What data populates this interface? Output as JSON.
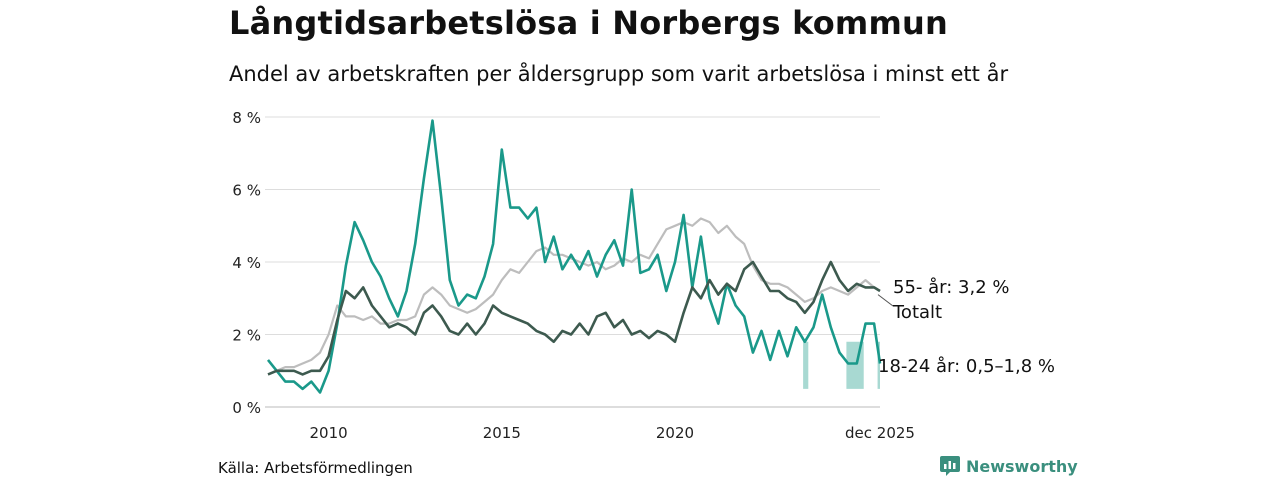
{
  "header": {
    "title": "Långtidsarbetslösa i Norbergs kommun",
    "subtitle": "Andel av arbetskraften per åldersgrupp som varit arbetslösa i minst ett år"
  },
  "footer": {
    "source": "Källa: Arbetsförmedlingen",
    "brand": "Newsworthy"
  },
  "colors": {
    "series_55": "#3d5a4f",
    "series_18_24": "#1a998a",
    "series_total": "#bdbdbd",
    "uncertainty_band": "#a8d9d2",
    "grid": "#dddddd"
  },
  "chart_data": {
    "type": "line",
    "title": "Långtidsarbetslösa i Norbergs kommun",
    "subtitle": "Andel av arbetskraften per åldersgrupp som varit arbetslösa i minst ett år",
    "xlabel": "",
    "ylabel": "",
    "ylim": [
      0,
      8
    ],
    "xlim": [
      2008.25,
      2025.92
    ],
    "y_ticks": [
      0,
      2,
      4,
      6,
      8
    ],
    "y_tick_labels": [
      "0 %",
      "2 %",
      "4 %",
      "6 %",
      "8 %"
    ],
    "x_ticks": [
      2010,
      2015,
      2020,
      2025.92
    ],
    "x_tick_labels": [
      "2010",
      "2015",
      "2020",
      "dec 2025"
    ],
    "grid": true,
    "series": [
      {
        "name": "Totalt",
        "label": "Totalt",
        "color": "#bdbdbd",
        "points": [
          [
            2008.25,
            0.9
          ],
          [
            2008.5,
            1.0
          ],
          [
            2008.75,
            1.1
          ],
          [
            2009.0,
            1.1
          ],
          [
            2009.25,
            1.2
          ],
          [
            2009.5,
            1.3
          ],
          [
            2009.75,
            1.5
          ],
          [
            2010.0,
            2.0
          ],
          [
            2010.25,
            2.8
          ],
          [
            2010.5,
            2.5
          ],
          [
            2010.75,
            2.5
          ],
          [
            2011.0,
            2.4
          ],
          [
            2011.25,
            2.5
          ],
          [
            2011.5,
            2.3
          ],
          [
            2011.75,
            2.3
          ],
          [
            2012.0,
            2.4
          ],
          [
            2012.25,
            2.4
          ],
          [
            2012.5,
            2.5
          ],
          [
            2012.75,
            3.1
          ],
          [
            2013.0,
            3.3
          ],
          [
            2013.25,
            3.1
          ],
          [
            2013.5,
            2.8
          ],
          [
            2013.75,
            2.7
          ],
          [
            2014.0,
            2.6
          ],
          [
            2014.25,
            2.7
          ],
          [
            2014.5,
            2.9
          ],
          [
            2014.75,
            3.1
          ],
          [
            2015.0,
            3.5
          ],
          [
            2015.25,
            3.8
          ],
          [
            2015.5,
            3.7
          ],
          [
            2015.75,
            4.0
          ],
          [
            2016.0,
            4.3
          ],
          [
            2016.25,
            4.4
          ],
          [
            2016.5,
            4.2
          ],
          [
            2016.75,
            4.2
          ],
          [
            2017.0,
            4.1
          ],
          [
            2017.25,
            4.0
          ],
          [
            2017.5,
            3.9
          ],
          [
            2017.75,
            4.0
          ],
          [
            2018.0,
            3.8
          ],
          [
            2018.25,
            3.9
          ],
          [
            2018.5,
            4.1
          ],
          [
            2018.75,
            4.0
          ],
          [
            2019.0,
            4.2
          ],
          [
            2019.25,
            4.1
          ],
          [
            2019.5,
            4.5
          ],
          [
            2019.75,
            4.9
          ],
          [
            2020.0,
            5.0
          ],
          [
            2020.25,
            5.1
          ],
          [
            2020.5,
            5.0
          ],
          [
            2020.75,
            5.2
          ],
          [
            2021.0,
            5.1
          ],
          [
            2021.25,
            4.8
          ],
          [
            2021.5,
            5.0
          ],
          [
            2021.75,
            4.7
          ],
          [
            2022.0,
            4.5
          ],
          [
            2022.25,
            3.9
          ],
          [
            2022.5,
            3.5
          ],
          [
            2022.75,
            3.4
          ],
          [
            2023.0,
            3.4
          ],
          [
            2023.25,
            3.3
          ],
          [
            2023.5,
            3.1
          ],
          [
            2023.75,
            2.9
          ],
          [
            2024.0,
            3.0
          ],
          [
            2024.25,
            3.2
          ],
          [
            2024.5,
            3.3
          ],
          [
            2024.75,
            3.2
          ],
          [
            2025.0,
            3.1
          ],
          [
            2025.25,
            3.3
          ],
          [
            2025.5,
            3.5
          ],
          [
            2025.75,
            3.3
          ],
          [
            2025.92,
            3.2
          ]
        ]
      },
      {
        "name": "55- år",
        "label": "55- år: 3,2 %",
        "color": "#3d5a4f",
        "points": [
          [
            2008.25,
            0.9
          ],
          [
            2008.5,
            1.0
          ],
          [
            2008.75,
            1.0
          ],
          [
            2009.0,
            1.0
          ],
          [
            2009.25,
            0.9
          ],
          [
            2009.5,
            1.0
          ],
          [
            2009.75,
            1.0
          ],
          [
            2010.0,
            1.4
          ],
          [
            2010.25,
            2.4
          ],
          [
            2010.5,
            3.2
          ],
          [
            2010.75,
            3.0
          ],
          [
            2011.0,
            3.3
          ],
          [
            2011.25,
            2.8
          ],
          [
            2011.5,
            2.5
          ],
          [
            2011.75,
            2.2
          ],
          [
            2012.0,
            2.3
          ],
          [
            2012.25,
            2.2
          ],
          [
            2012.5,
            2.0
          ],
          [
            2012.75,
            2.6
          ],
          [
            2013.0,
            2.8
          ],
          [
            2013.25,
            2.5
          ],
          [
            2013.5,
            2.1
          ],
          [
            2013.75,
            2.0
          ],
          [
            2014.0,
            2.3
          ],
          [
            2014.25,
            2.0
          ],
          [
            2014.5,
            2.3
          ],
          [
            2014.75,
            2.8
          ],
          [
            2015.0,
            2.6
          ],
          [
            2015.25,
            2.5
          ],
          [
            2015.5,
            2.4
          ],
          [
            2015.75,
            2.3
          ],
          [
            2016.0,
            2.1
          ],
          [
            2016.25,
            2.0
          ],
          [
            2016.5,
            1.8
          ],
          [
            2016.75,
            2.1
          ],
          [
            2017.0,
            2.0
          ],
          [
            2017.25,
            2.3
          ],
          [
            2017.5,
            2.0
          ],
          [
            2017.75,
            2.5
          ],
          [
            2018.0,
            2.6
          ],
          [
            2018.25,
            2.2
          ],
          [
            2018.5,
            2.4
          ],
          [
            2018.75,
            2.0
          ],
          [
            2019.0,
            2.1
          ],
          [
            2019.25,
            1.9
          ],
          [
            2019.5,
            2.1
          ],
          [
            2019.75,
            2.0
          ],
          [
            2020.0,
            1.8
          ],
          [
            2020.25,
            2.6
          ],
          [
            2020.5,
            3.3
          ],
          [
            2020.75,
            3.0
          ],
          [
            2021.0,
            3.5
          ],
          [
            2021.25,
            3.1
          ],
          [
            2021.5,
            3.4
          ],
          [
            2021.75,
            3.2
          ],
          [
            2022.0,
            3.8
          ],
          [
            2022.25,
            4.0
          ],
          [
            2022.5,
            3.6
          ],
          [
            2022.75,
            3.2
          ],
          [
            2023.0,
            3.2
          ],
          [
            2023.25,
            3.0
          ],
          [
            2023.5,
            2.9
          ],
          [
            2023.75,
            2.6
          ],
          [
            2024.0,
            2.9
          ],
          [
            2024.25,
            3.5
          ],
          [
            2024.5,
            4.0
          ],
          [
            2024.75,
            3.5
          ],
          [
            2025.0,
            3.2
          ],
          [
            2025.25,
            3.4
          ],
          [
            2025.5,
            3.3
          ],
          [
            2025.75,
            3.3
          ],
          [
            2025.92,
            3.2
          ]
        ]
      },
      {
        "name": "18-24 år",
        "label": "18-24 år: 0,5–1,8 %",
        "color": "#1a998a",
        "band_last": [
          0.5,
          1.8
        ],
        "points": [
          [
            2008.25,
            1.3
          ],
          [
            2008.5,
            1.0
          ],
          [
            2008.75,
            0.7
          ],
          [
            2009.0,
            0.7
          ],
          [
            2009.25,
            0.5
          ],
          [
            2009.5,
            0.7
          ],
          [
            2009.75,
            0.4
          ],
          [
            2010.0,
            1.0
          ],
          [
            2010.25,
            2.3
          ],
          [
            2010.5,
            3.9
          ],
          [
            2010.75,
            5.1
          ],
          [
            2011.0,
            4.6
          ],
          [
            2011.25,
            4.0
          ],
          [
            2011.5,
            3.6
          ],
          [
            2011.75,
            3.0
          ],
          [
            2012.0,
            2.5
          ],
          [
            2012.25,
            3.2
          ],
          [
            2012.5,
            4.5
          ],
          [
            2012.75,
            6.3
          ],
          [
            2013.0,
            7.9
          ],
          [
            2013.25,
            5.8
          ],
          [
            2013.5,
            3.5
          ],
          [
            2013.75,
            2.8
          ],
          [
            2014.0,
            3.1
          ],
          [
            2014.25,
            3.0
          ],
          [
            2014.5,
            3.6
          ],
          [
            2014.75,
            4.5
          ],
          [
            2015.0,
            7.1
          ],
          [
            2015.25,
            5.5
          ],
          [
            2015.5,
            5.5
          ],
          [
            2015.75,
            5.2
          ],
          [
            2016.0,
            5.5
          ],
          [
            2016.25,
            4.0
          ],
          [
            2016.5,
            4.7
          ],
          [
            2016.75,
            3.8
          ],
          [
            2017.0,
            4.2
          ],
          [
            2017.25,
            3.8
          ],
          [
            2017.5,
            4.3
          ],
          [
            2017.75,
            3.6
          ],
          [
            2018.0,
            4.2
          ],
          [
            2018.25,
            4.6
          ],
          [
            2018.5,
            3.9
          ],
          [
            2018.75,
            6.0
          ],
          [
            2019.0,
            3.7
          ],
          [
            2019.25,
            3.8
          ],
          [
            2019.5,
            4.2
          ],
          [
            2019.75,
            3.2
          ],
          [
            2020.0,
            4.0
          ],
          [
            2020.25,
            5.3
          ],
          [
            2020.5,
            3.3
          ],
          [
            2020.75,
            4.7
          ],
          [
            2021.0,
            3.0
          ],
          [
            2021.25,
            2.3
          ],
          [
            2021.5,
            3.4
          ],
          [
            2021.75,
            2.8
          ],
          [
            2022.0,
            2.5
          ],
          [
            2022.25,
            1.5
          ],
          [
            2022.5,
            2.1
          ],
          [
            2022.75,
            1.3
          ],
          [
            2023.0,
            2.1
          ],
          [
            2023.25,
            1.4
          ],
          [
            2023.5,
            2.2
          ],
          [
            2023.75,
            1.8
          ],
          [
            2024.0,
            2.2
          ],
          [
            2024.25,
            3.1
          ],
          [
            2024.5,
            2.2
          ],
          [
            2024.75,
            1.5
          ],
          [
            2025.0,
            1.2
          ],
          [
            2025.25,
            1.2
          ],
          [
            2025.5,
            2.3
          ],
          [
            2025.75,
            2.3
          ],
          [
            2025.92,
            1.2
          ]
        ]
      }
    ]
  }
}
